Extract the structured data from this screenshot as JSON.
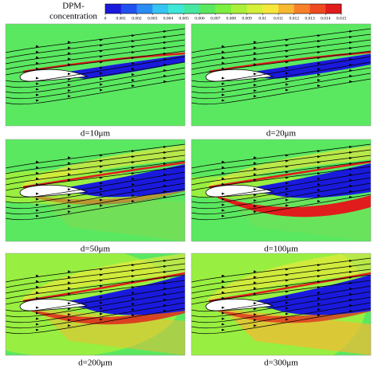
{
  "colorbar": {
    "title": [
      "DPM-",
      "concentration"
    ],
    "ticks": [
      0,
      0.001,
      0.002,
      0.003,
      0.004,
      0.005,
      0.006,
      0.007,
      0.008,
      0.009,
      0.01,
      0.011,
      0.012,
      0.013,
      0.014,
      0.015
    ],
    "colors": [
      "#1a1adc",
      "#2050f0",
      "#2a8cf5",
      "#36c4f2",
      "#3ee8d8",
      "#46e8a0",
      "#5ae860",
      "#7cf040",
      "#a8f03a",
      "#d4f03a",
      "#f6e83a",
      "#f8b832",
      "#f88028",
      "#f04a20",
      "#e01c1c"
    ]
  },
  "panels": [
    {
      "label": "d=10μm"
    },
    {
      "label": "d=20μm"
    },
    {
      "label": "d=50μm"
    },
    {
      "label": "d=100μm"
    },
    {
      "label": "d=200μm"
    },
    {
      "label": "d=300μm"
    }
  ]
}
